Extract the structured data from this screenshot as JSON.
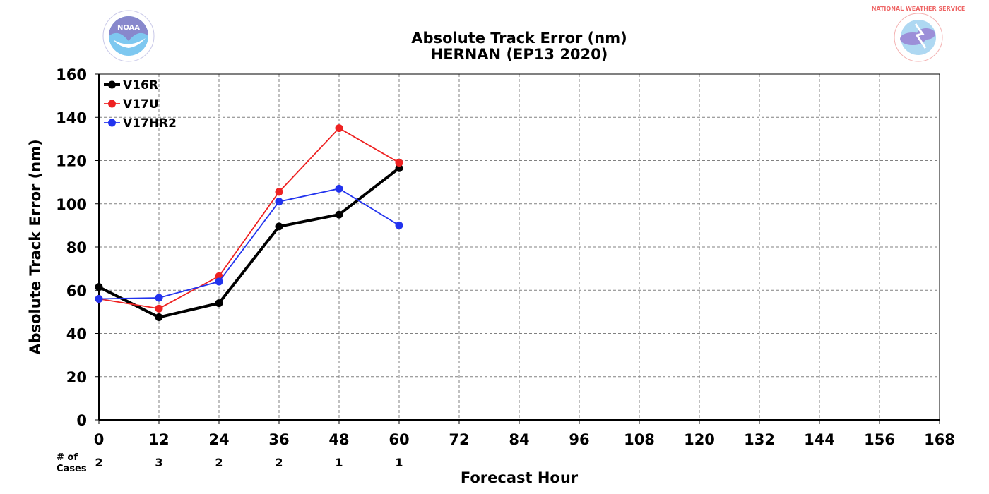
{
  "chart_data": {
    "type": "line",
    "title": "Absolute Track Error (nm)",
    "subtitle": "HERNAN (EP13 2020)",
    "xlabel": "Forecast Hour",
    "ylabel": "Absolute Track Error (nm)",
    "xlim": [
      0,
      168
    ],
    "ylim": [
      0,
      160
    ],
    "x_ticks": [
      0,
      12,
      24,
      36,
      48,
      60,
      72,
      84,
      96,
      108,
      120,
      132,
      144,
      156,
      168
    ],
    "y_ticks": [
      0,
      20,
      40,
      60,
      80,
      100,
      120,
      140,
      160
    ],
    "grid": true,
    "legend_position": "top-left",
    "x": [
      0,
      12,
      24,
      36,
      48,
      60
    ],
    "series": [
      {
        "name": "V16R",
        "color": "#000000",
        "values": [
          61.5,
          47.5,
          54,
          89.5,
          95,
          116.5
        ]
      },
      {
        "name": "V17U",
        "color": "#ee2222",
        "values": [
          56,
          51.5,
          66.5,
          105.5,
          135,
          119
        ]
      },
      {
        "name": "V17HR2",
        "color": "#2233ee",
        "values": [
          56,
          56.5,
          64,
          101,
          107,
          90
        ]
      }
    ],
    "cases_label": [
      "# of",
      "Cases"
    ],
    "cases": [
      2,
      3,
      2,
      2,
      1,
      1
    ]
  },
  "logos": {
    "left": {
      "icon": "noaa-logo-icon",
      "text": "NOAA"
    },
    "right": {
      "icon": "nws-logo-icon",
      "text": "NATIONAL WEATHER SERVICE"
    }
  }
}
